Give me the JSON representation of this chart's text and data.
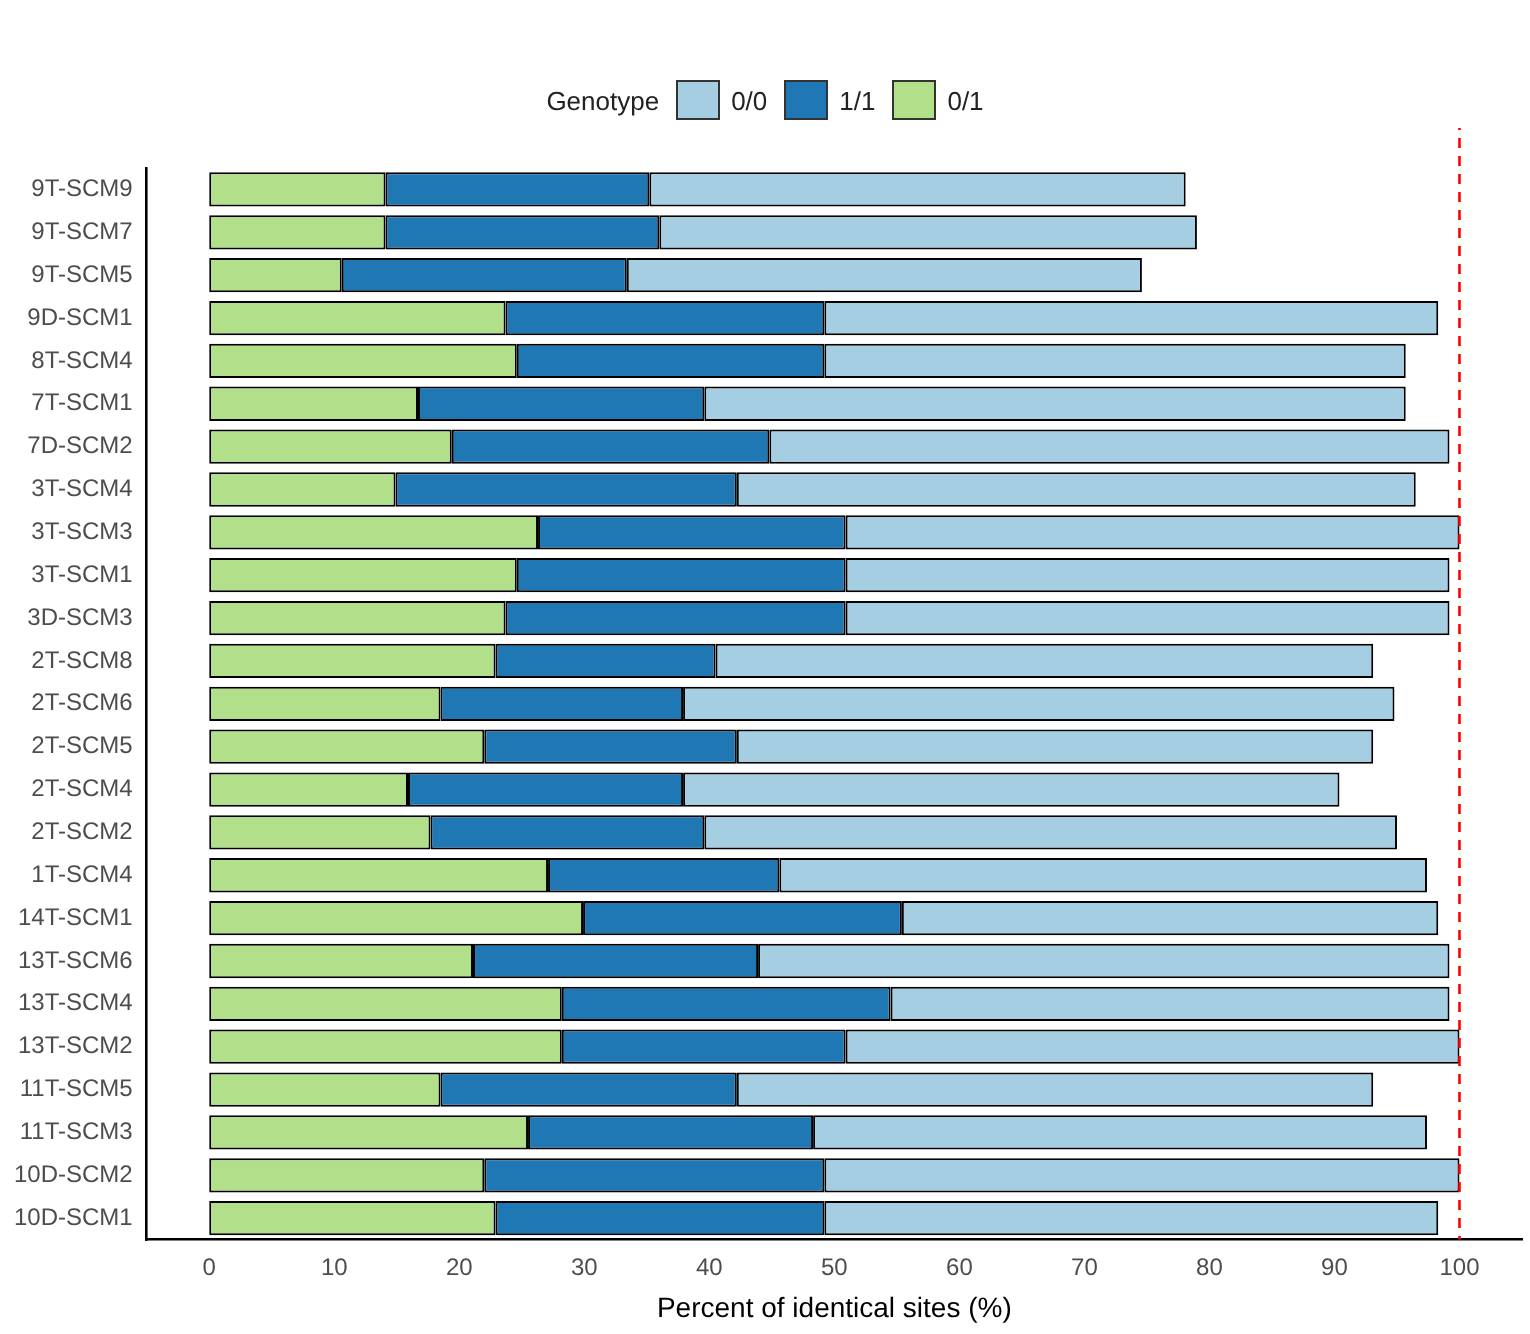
{
  "chart_data": {
    "type": "bar",
    "orientation": "horizontal",
    "stacked": true,
    "xlabel": "Percent of identical sites (%)",
    "legend_title": "Genotype",
    "legend": "top",
    "grid": false,
    "categories": [
      "9T-SCM9",
      "9T-SCM7",
      "9T-SCM5",
      "9D-SCM1",
      "8T-SCM4",
      "7T-SCM1",
      "7D-SCM2",
      "3T-SCM4",
      "3T-SCM3",
      "3T-SCM1",
      "3D-SCM3",
      "2T-SCM8",
      "2T-SCM6",
      "2T-SCM5",
      "2T-SCM4",
      "2T-SCM2",
      "1T-SCM4",
      "14T-SCM1",
      "13T-SCM6",
      "13T-SCM4",
      "13T-SCM2",
      "11T-SCM5",
      "11T-SCM3",
      "10D-SCM2",
      "10D-SCM1"
    ],
    "series": [
      {
        "name": "0/1",
        "color": "#b2df8a",
        "values": [
          14.1,
          14.1,
          10.6,
          23.7,
          24.6,
          16.7,
          19.4,
          14.9,
          26.3,
          24.6,
          23.7,
          22.9,
          18.5,
          22.0,
          15.9,
          17.7,
          27.1,
          29.9,
          21.1,
          28.2,
          28.2,
          18.5,
          25.5,
          22.0,
          22.9
        ]
      },
      {
        "name": "1/1",
        "color": "#1f78b4",
        "values": [
          21.1,
          21.9,
          22.8,
          25.5,
          24.6,
          22.9,
          25.4,
          27.3,
          24.6,
          26.3,
          27.2,
          17.6,
          19.4,
          20.2,
          22.0,
          21.9,
          18.5,
          25.5,
          22.8,
          26.3,
          22.7,
          23.7,
          22.8,
          27.2,
          26.3
        ]
      },
      {
        "name": "0/0",
        "color": "#a6cee3",
        "values": [
          42.9,
          43.0,
          41.2,
          49.1,
          46.5,
          56.1,
          54.4,
          54.3,
          49.1,
          48.3,
          48.3,
          52.6,
          56.9,
          50.9,
          52.5,
          55.4,
          51.8,
          42.9,
          55.3,
          44.7,
          49.1,
          50.9,
          49.1,
          50.8,
          49.1
        ]
      }
    ],
    "xlim": [
      -5,
      105
    ],
    "xticks": [
      0,
      10,
      20,
      30,
      40,
      50,
      60,
      70,
      80,
      90,
      100
    ],
    "ref_lines": [
      {
        "axis": "x",
        "value": 100,
        "color": "#ff0000",
        "line_style": "dashed"
      }
    ]
  }
}
